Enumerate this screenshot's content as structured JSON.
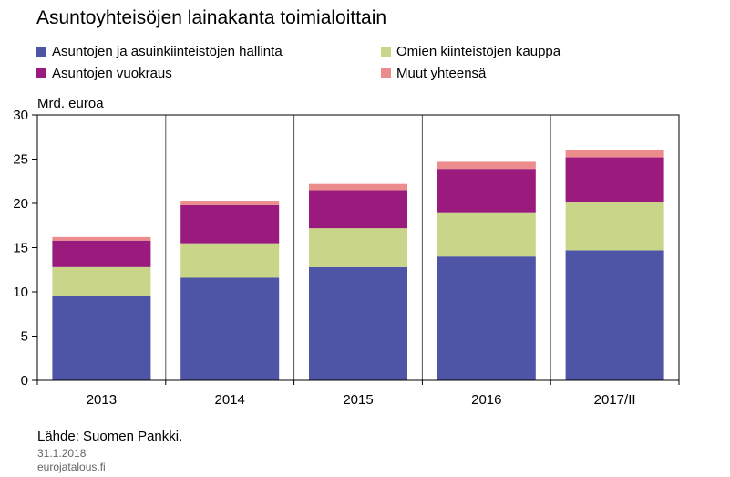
{
  "title": "Asuntoyhteisöjen lainakanta toimialoittain",
  "unit_label": "Mrd. euroa",
  "source": "Lähde: Suomen Pankki.",
  "date": "31.1.2018",
  "site": "eurojatalous.fi",
  "colors": {
    "hallinta": "#4e55a6",
    "kauppa": "#c9d68a",
    "vuokraus": "#9a1a7e",
    "muut": "#ec8c8c"
  },
  "chart_data": {
    "type": "bar",
    "stacked": true,
    "title": "Asuntoyhteisöjen lainakanta toimialoittain",
    "ylabel": "Mrd. euroa",
    "categories": [
      "2013",
      "2014",
      "2015",
      "2016",
      "2017/II"
    ],
    "ylim": [
      0,
      30
    ],
    "yticks": [
      0,
      5,
      10,
      15,
      20,
      25,
      30
    ],
    "series": [
      {
        "name": "Asuntojen ja asuinkiinteistöjen hallinta",
        "values": [
          9.5,
          11.6,
          12.8,
          14.0,
          14.7
        ]
      },
      {
        "name": "Omien kiinteistöjen kauppa",
        "values": [
          3.3,
          3.9,
          4.4,
          5.0,
          5.4
        ]
      },
      {
        "name": "Asuntojen vuokraus",
        "values": [
          3.0,
          4.3,
          4.3,
          4.9,
          5.1
        ]
      },
      {
        "name": "Muut yhteensä",
        "values": [
          0.4,
          0.5,
          0.7,
          0.8,
          0.8
        ]
      }
    ],
    "legend_position": "top",
    "grid": "vertical"
  }
}
